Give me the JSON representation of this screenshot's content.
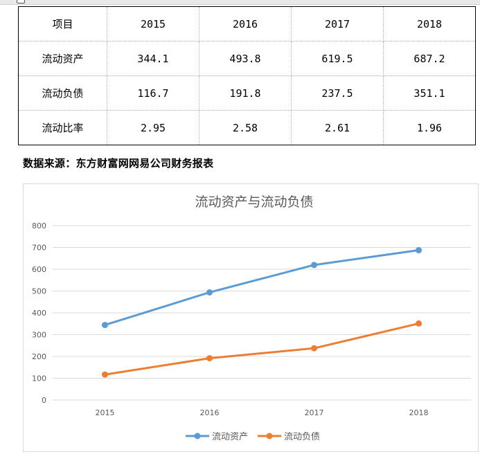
{
  "table": {
    "header": [
      "项目",
      "2015",
      "2016",
      "2017",
      "2018"
    ],
    "rows": [
      [
        "流动资产",
        "344.1",
        "493.8",
        "619.5",
        "687.2"
      ],
      [
        "流动负债",
        "116.7",
        "191.8",
        "237.5",
        "351.1"
      ],
      [
        "流动比率",
        "2.95",
        "2.58",
        "2.61",
        "1.96"
      ]
    ]
  },
  "source_note": "数据来源：东方财富网网易公司财务报表",
  "chart_data": {
    "type": "line",
    "title": "流动资产与流动负债",
    "categories": [
      "2015",
      "2016",
      "2017",
      "2018"
    ],
    "series": [
      {
        "name": "流动资产",
        "values": [
          344.1,
          493.8,
          619.5,
          687.2
        ],
        "color": "#5b9bd5"
      },
      {
        "name": "流动负债",
        "values": [
          116.7,
          191.8,
          237.5,
          351.1
        ],
        "color": "#ed7d31"
      }
    ],
    "ylim": [
      0,
      800
    ],
    "yticks": [
      0,
      100,
      200,
      300,
      400,
      500,
      600,
      700,
      800
    ],
    "grid": true,
    "legend": "bottom"
  }
}
